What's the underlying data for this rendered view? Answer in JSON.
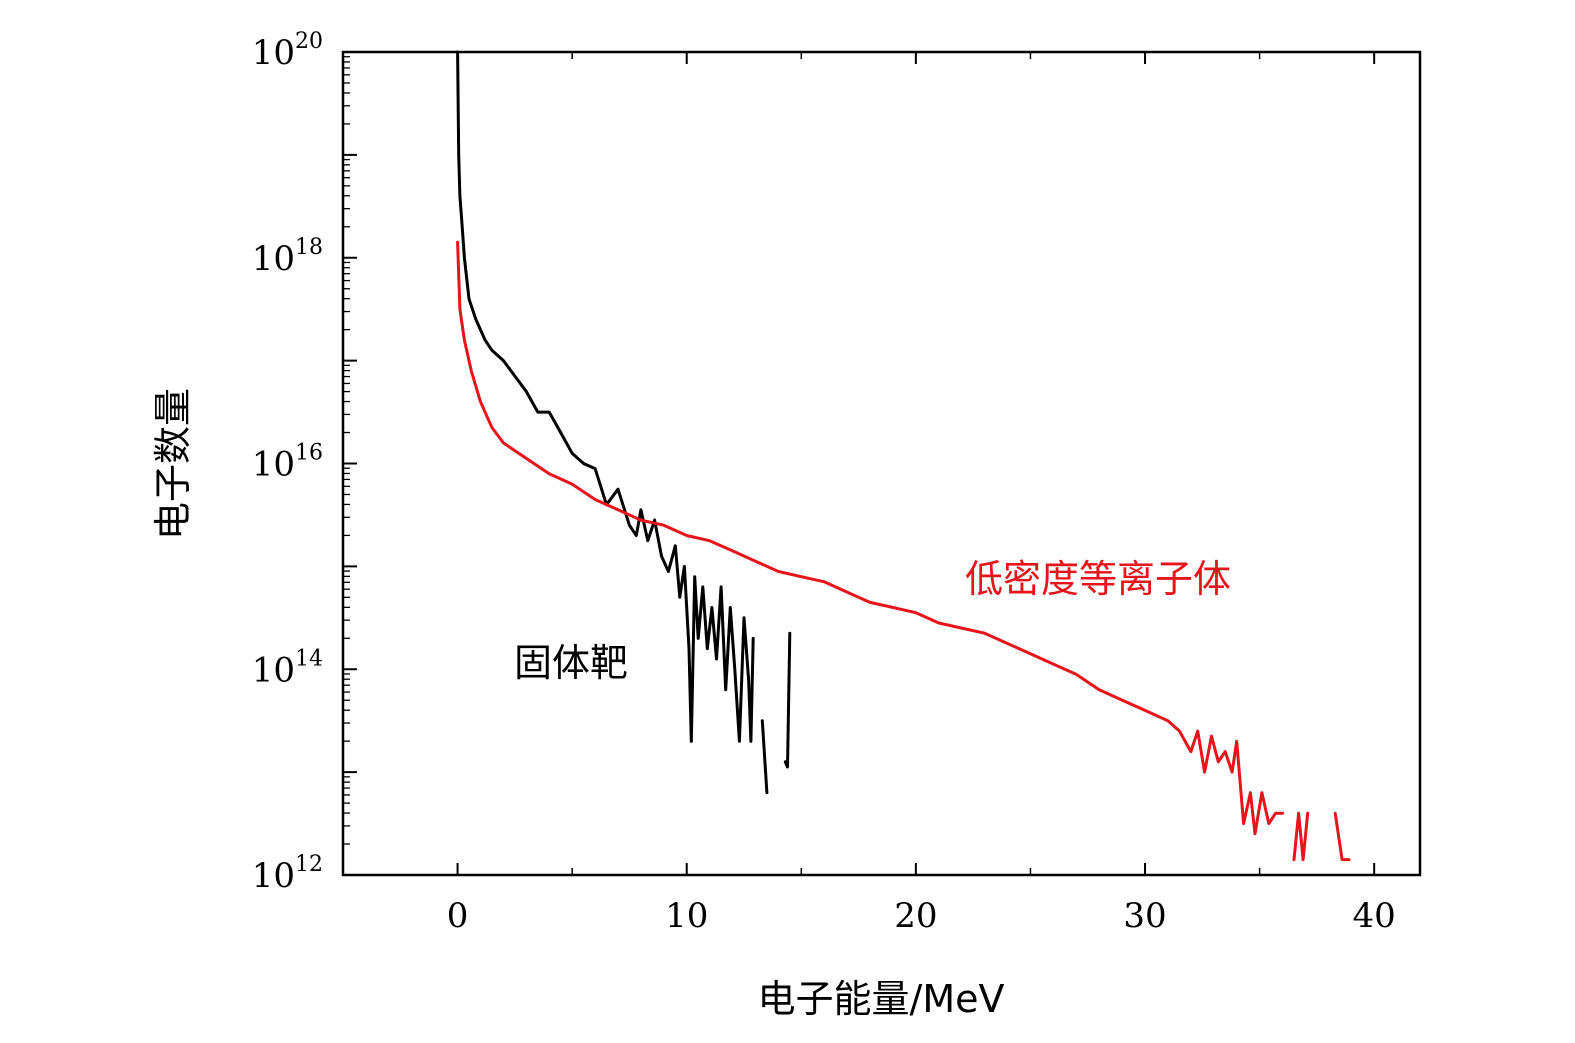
{
  "chart_data": {
    "type": "line",
    "title": "",
    "xlabel": "电子能量/MeV",
    "ylabel": "电子数量",
    "xlim": [
      -5,
      42
    ],
    "ylog": true,
    "ylim_exponent": [
      12,
      20
    ],
    "x_ticks": [
      0,
      10,
      20,
      30,
      40
    ],
    "x_tick_labels": [
      "0",
      "10",
      "20",
      "30",
      "40"
    ],
    "y_ticks_base": "10",
    "y_ticks_exponents": [
      12,
      14,
      16,
      18,
      20
    ],
    "y_tick_exponent_labels": [
      "12",
      "14",
      "16",
      "18",
      "20"
    ],
    "colors": {
      "solid": "#000000",
      "plasma": "#e8141b"
    },
    "series": [
      {
        "name": "固体靶",
        "color": "#000000",
        "segments": [
          [
            [
              0,
              20
            ],
            [
              0.05,
              19.0
            ],
            [
              0.1,
              18.6
            ],
            [
              0.2,
              18.3
            ],
            [
              0.3,
              18.0
            ],
            [
              0.5,
              17.6
            ],
            [
              0.8,
              17.4
            ],
            [
              1.2,
              17.2
            ],
            [
              1.5,
              17.1
            ],
            [
              2.0,
              17.0
            ],
            [
              2.5,
              16.85
            ],
            [
              3.0,
              16.7
            ],
            [
              3.5,
              16.5
            ],
            [
              4.0,
              16.5
            ],
            [
              4.5,
              16.3
            ],
            [
              5.0,
              16.1
            ],
            [
              5.5,
              16.0
            ],
            [
              6.0,
              15.95
            ],
            [
              6.5,
              15.6
            ],
            [
              7.0,
              15.75
            ],
            [
              7.5,
              15.4
            ],
            [
              7.8,
              15.3
            ],
            [
              8.0,
              15.55
            ],
            [
              8.3,
              15.25
            ],
            [
              8.6,
              15.45
            ],
            [
              8.9,
              15.1
            ],
            [
              9.2,
              14.95
            ],
            [
              9.5,
              15.2
            ],
            [
              9.7,
              14.7
            ],
            [
              9.9,
              15.0
            ],
            [
              10.1,
              14.2
            ],
            [
              10.2,
              13.3
            ],
            [
              10.35,
              14.9
            ],
            [
              10.5,
              14.3
            ],
            [
              10.7,
              14.8
            ],
            [
              10.9,
              14.2
            ],
            [
              11.1,
              14.6
            ],
            [
              11.3,
              14.1
            ],
            [
              11.5,
              14.8
            ],
            [
              11.7,
              13.8
            ],
            [
              11.9,
              14.6
            ],
            [
              12.1,
              14.0
            ],
            [
              12.3,
              13.3
            ],
            [
              12.5,
              14.5
            ],
            [
              12.7,
              13.9
            ],
            [
              12.8,
              13.3
            ],
            [
              12.9,
              14.3
            ]
          ],
          [
            [
              13.3,
              13.5
            ],
            [
              13.5,
              12.8
            ]
          ],
          [
            [
              14.3,
              13.1
            ],
            [
              14.4,
              13.05
            ],
            [
              14.5,
              14.35
            ]
          ]
        ]
      },
      {
        "name": "低密度等离子体",
        "color": "#e8141b",
        "segments": [
          [
            [
              0,
              18.15
            ],
            [
              0.1,
              17.5
            ],
            [
              0.3,
              17.2
            ],
            [
              0.6,
              16.9
            ],
            [
              1.0,
              16.6
            ],
            [
              1.5,
              16.35
            ],
            [
              2.0,
              16.2
            ],
            [
              3.0,
              16.05
            ],
            [
              4.0,
              15.9
            ],
            [
              5.0,
              15.8
            ],
            [
              6.0,
              15.65
            ],
            [
              7.0,
              15.55
            ],
            [
              8.0,
              15.45
            ],
            [
              9.0,
              15.4
            ],
            [
              10.0,
              15.3
            ],
            [
              11.0,
              15.25
            ],
            [
              12.0,
              15.15
            ],
            [
              13.0,
              15.05
            ],
            [
              14.0,
              14.95
            ],
            [
              15.0,
              14.9
            ],
            [
              16.0,
              14.85
            ],
            [
              17.0,
              14.75
            ],
            [
              18.0,
              14.65
            ],
            [
              19.0,
              14.6
            ],
            [
              20.0,
              14.55
            ],
            [
              21.0,
              14.45
            ],
            [
              22.0,
              14.4
            ],
            [
              23.0,
              14.35
            ],
            [
              24.0,
              14.25
            ],
            [
              25.0,
              14.15
            ],
            [
              26.0,
              14.05
            ],
            [
              27.0,
              13.95
            ],
            [
              28.0,
              13.8
            ],
            [
              29.0,
              13.7
            ],
            [
              30.0,
              13.6
            ],
            [
              31.0,
              13.5
            ],
            [
              31.5,
              13.4
            ],
            [
              32.0,
              13.2
            ],
            [
              32.3,
              13.4
            ],
            [
              32.6,
              13.0
            ],
            [
              32.9,
              13.35
            ],
            [
              33.2,
              13.1
            ],
            [
              33.5,
              13.2
            ],
            [
              33.8,
              13.0
            ],
            [
              34.0,
              13.3
            ],
            [
              34.3,
              12.5
            ],
            [
              34.6,
              12.8
            ],
            [
              34.8,
              12.4
            ],
            [
              35.1,
              12.8
            ],
            [
              35.4,
              12.5
            ],
            [
              35.7,
              12.6
            ],
            [
              36.0,
              12.6
            ]
          ],
          [
            [
              36.5,
              12.15
            ],
            [
              36.7,
              12.6
            ],
            [
              36.9,
              12.15
            ],
            [
              37.1,
              12.6
            ]
          ],
          [
            [
              38.3,
              12.6
            ],
            [
              38.6,
              12.15
            ],
            [
              38.9,
              12.15
            ]
          ]
        ]
      }
    ],
    "annotations": [
      {
        "text": "固体靶",
        "color": "#000000"
      },
      {
        "text": "低密度等离子体",
        "color": "#e8141b"
      }
    ]
  }
}
